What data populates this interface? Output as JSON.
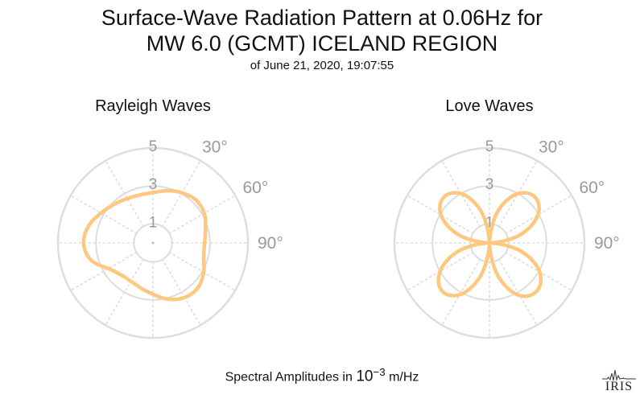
{
  "title_line1": "Surface-Wave Radiation Pattern at 0.06Hz for",
  "title_line2": "MW 6.0 (GCMT) ICELAND REGION",
  "subtitle": "of June 21, 2020, 19:07:55",
  "footer": {
    "prefix": "Spectral Amplitudes in ",
    "base": "10",
    "exponent": "−3",
    "unit": " m/Hz"
  },
  "logo_text": "IRIS",
  "colors": {
    "pattern": "#FFC77F",
    "grid": "#dddddd",
    "label": "#9a9a9a"
  },
  "chart_data": [
    {
      "type": "polar-line",
      "title": "Rayleigh Waves",
      "r_ticks": [
        "1",
        "3",
        "5"
      ],
      "r_range": [
        0,
        5
      ],
      "angle_ticks": [
        "30°",
        "60°",
        "90°"
      ],
      "direction": "clockwise",
      "zero_at": "top",
      "azimuth_deg": [
        0,
        15,
        30,
        45,
        60,
        75,
        90,
        105,
        120,
        135,
        150,
        165,
        180,
        195,
        210,
        225,
        240,
        255,
        270,
        285,
        300,
        315,
        330,
        345
      ],
      "amplitude": [
        2.65,
        2.85,
        3.05,
        3.2,
        3.12,
        2.86,
        2.72,
        2.76,
        3.08,
        3.34,
        3.32,
        3.06,
        2.7,
        2.46,
        2.33,
        2.38,
        2.7,
        3.4,
        3.65,
        3.5,
        3.15,
        2.88,
        2.7,
        2.62
      ]
    },
    {
      "type": "polar-line",
      "title": "Love Waves",
      "r_ticks": [
        "1",
        "3",
        "5"
      ],
      "r_range": [
        0,
        5
      ],
      "angle_ticks": [
        "30°",
        "60°",
        "90°"
      ],
      "direction": "clockwise",
      "zero_at": "top",
      "azimuth_deg": [
        0,
        15,
        30,
        45,
        60,
        75,
        90,
        105,
        120,
        135,
        150,
        165,
        180,
        195,
        210,
        225,
        240,
        255,
        270,
        285,
        300,
        315,
        330,
        345
      ],
      "amplitude": [
        0.0,
        1.75,
        3.0,
        3.4,
        2.95,
        1.7,
        0.1,
        1.75,
        3.05,
        3.55,
        3.2,
        1.85,
        0.0,
        1.8,
        3.15,
        3.55,
        3.0,
        1.7,
        0.1,
        1.7,
        2.95,
        3.4,
        3.0,
        1.75
      ]
    }
  ]
}
